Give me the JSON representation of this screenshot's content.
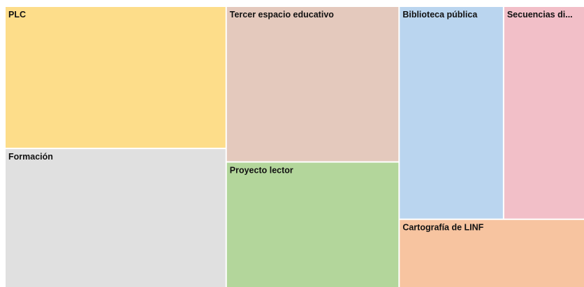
{
  "chart_data": {
    "type": "treemap",
    "categories": [
      "PLC",
      "Formación",
      "Tercer espacio educativo",
      "Proyecto lector",
      "Biblioteca pública",
      "Secuencias di...",
      "Cartografía de LINF"
    ],
    "values": [
      19.3,
      18.9,
      16.5,
      13.3,
      13.7,
      10.6,
      7.7
    ],
    "colors": [
      "#fddd8a",
      "#e0e0e0",
      "#e4c9bd",
      "#b3d69b",
      "#bad5ef",
      "#f2bfc8",
      "#f7c4a0"
    ]
  }
}
